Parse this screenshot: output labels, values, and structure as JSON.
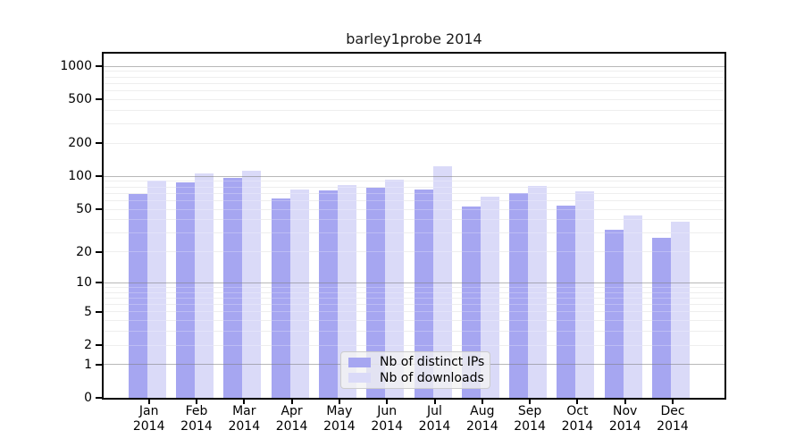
{
  "chart_data": {
    "type": "bar",
    "title": "barley1probe 2014",
    "x_tick_months": [
      "Jan",
      "Feb",
      "Mar",
      "Apr",
      "May",
      "Jun",
      "Jul",
      "Aug",
      "Sep",
      "Oct",
      "Nov",
      "Dec"
    ],
    "x_tick_year": "2014",
    "series": [
      {
        "name": "Nb of distinct IPs",
        "color": "#a6a6f1",
        "values": [
          69,
          89,
          97,
          63,
          74,
          79,
          76,
          53,
          70,
          54,
          32,
          27
        ]
      },
      {
        "name": "Nb of downloads",
        "color": "#dadaf8",
        "values": [
          92,
          107,
          112,
          76,
          84,
          93,
          123,
          65,
          82,
          73,
          44,
          38
        ]
      }
    ],
    "y_ticks": [
      0,
      1,
      2,
      5,
      10,
      20,
      50,
      100,
      200,
      500,
      1000
    ],
    "y_major_gridlines": [
      1,
      10,
      100,
      1000
    ],
    "y_scale": "log1p",
    "ylim": [
      0,
      1000
    ],
    "grid": true,
    "legend_position": "lower center"
  },
  "colors": {
    "background": "#ffffff",
    "bar_ips": "#a6a6f1",
    "bar_downloads": "#dadaf8",
    "grid_minor": "#e9e9e9",
    "grid_major": "#7d7d7d",
    "axis": "#000000",
    "text": "#000000",
    "legend_bg": "#f3f3f3",
    "legend_border": "#cccccc"
  }
}
